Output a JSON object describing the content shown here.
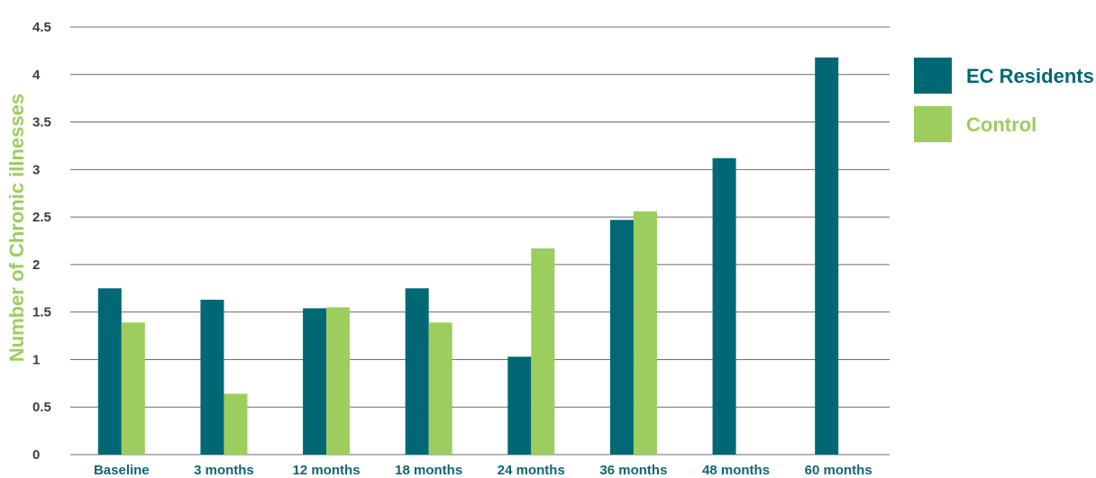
{
  "chart_data": {
    "type": "bar",
    "title": "",
    "xlabel": "",
    "ylabel": "Number of Chronic illnesses",
    "ylim": [
      0,
      4.5
    ],
    "yticks": [
      0,
      0.5,
      1,
      1.5,
      2,
      2.5,
      3,
      3.5,
      4,
      4.5
    ],
    "ytick_labels": [
      "0",
      "0.5",
      "1",
      "1.5",
      "2",
      "2.5",
      "3",
      "3.5",
      "4",
      "4.5"
    ],
    "categories": [
      "Baseline",
      "3 months",
      "12 months",
      "18 months",
      "24 months",
      "36 months",
      "48 months",
      "60 months"
    ],
    "series": [
      {
        "name": "EC Residents",
        "color": "#006875",
        "values": [
          1.75,
          1.63,
          1.54,
          1.75,
          1.03,
          2.47,
          3.12,
          4.18
        ]
      },
      {
        "name": "Control",
        "color": "#9ccd5e",
        "values": [
          1.39,
          0.64,
          1.55,
          1.39,
          2.17,
          2.56,
          null,
          null
        ]
      }
    ],
    "grid": true,
    "legend_position": "right"
  }
}
